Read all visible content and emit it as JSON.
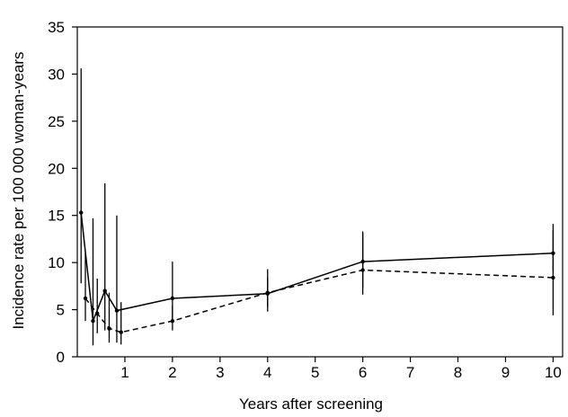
{
  "chart_data": {
    "type": "line",
    "xlabel": "Years after screening",
    "ylabel": "Incidence rate per 100 000 woman-years",
    "xlim": [
      0,
      10.2
    ],
    "ylim": [
      0,
      35
    ],
    "xticks": [
      1,
      2,
      3,
      4,
      5,
      6,
      7,
      8,
      9,
      10
    ],
    "yticks": [
      0,
      5,
      10,
      15,
      20,
      25,
      30,
      35
    ],
    "grid": false,
    "series": [
      {
        "style": "solid",
        "color": "#000000",
        "x": [
          0.08,
          0.33,
          0.58,
          0.83,
          2,
          4,
          6,
          10
        ],
        "y": [
          15.3,
          3.8,
          7.0,
          4.9,
          6.2,
          6.7,
          10.1,
          11.0
        ],
        "lower": [
          7.8,
          1.2,
          2.8,
          1.5,
          3.8,
          4.8,
          7.3,
          9.0
        ],
        "upper": [
          30.6,
          14.7,
          18.4,
          15.0,
          10.1,
          9.3,
          13.3,
          13.4
        ]
      },
      {
        "style": "dashed",
        "color": "#000000",
        "x": [
          0.17,
          0.42,
          0.67,
          0.92,
          2,
          4,
          6,
          10
        ],
        "y": [
          6.2,
          4.6,
          3.0,
          2.6,
          3.8,
          6.8,
          9.2,
          8.4
        ],
        "lower": [
          3.8,
          2.5,
          1.5,
          1.3,
          2.8,
          5.3,
          6.6,
          4.4
        ],
        "upper": [
          11.0,
          8.3,
          6.8,
          5.8,
          5.4,
          8.4,
          13.1,
          14.1
        ]
      }
    ]
  }
}
